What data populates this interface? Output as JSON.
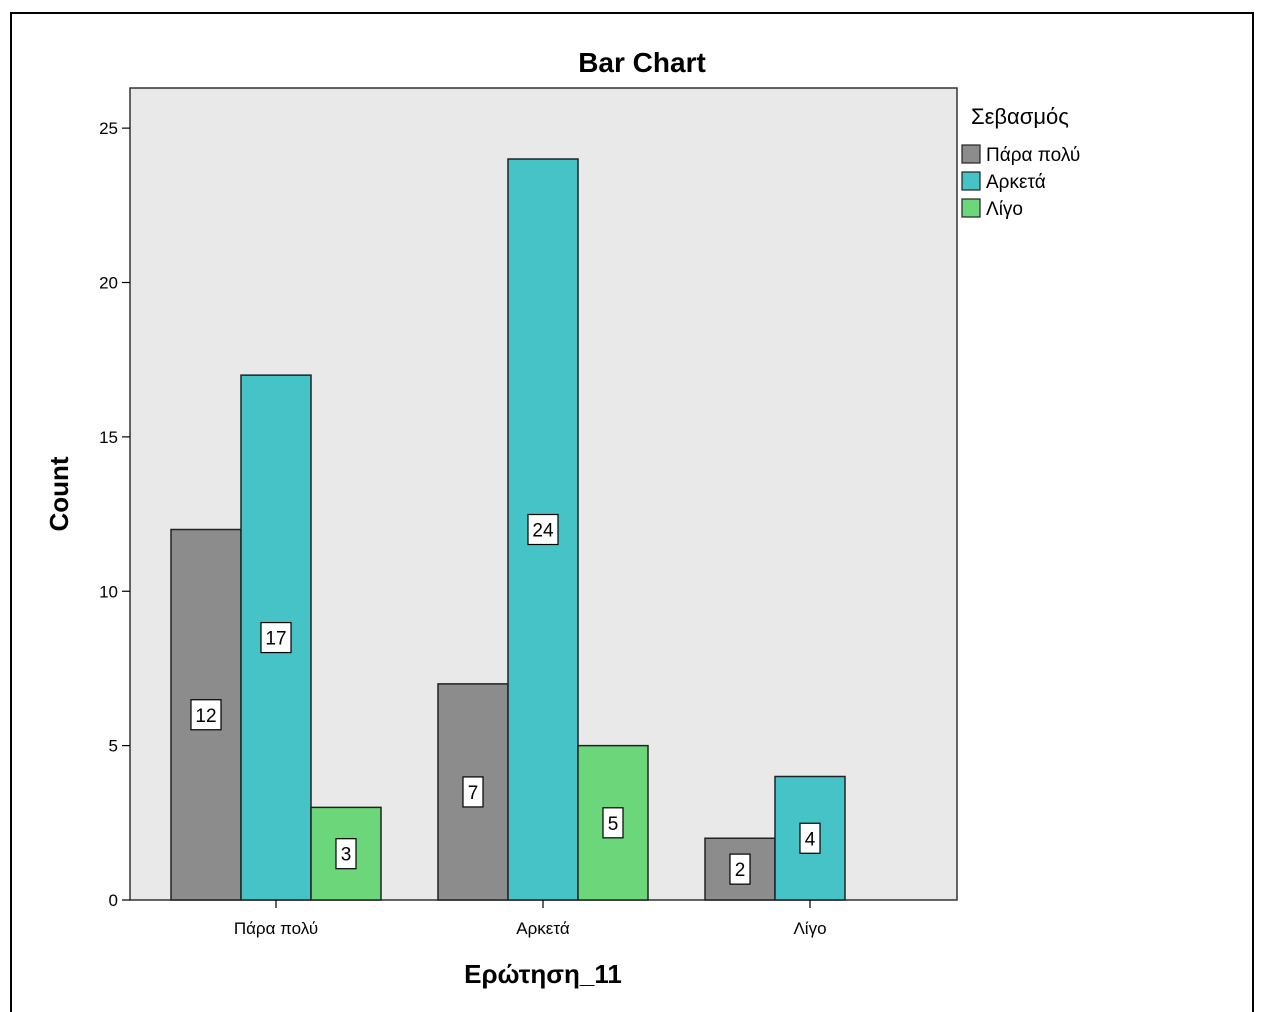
{
  "chart_data": {
    "type": "bar",
    "title": "Bar Chart",
    "xlabel": "Ερώτηση_11",
    "ylabel": "Count",
    "categories": [
      "Πάρα πολύ",
      "Αρκετά",
      "Λίγο"
    ],
    "legend_title": "Σεβασμός",
    "legend_position": "top-right",
    "ylim": [
      0,
      26.3
    ],
    "yticks": [
      0,
      5,
      10,
      15,
      20,
      25
    ],
    "grid": false,
    "plot_background": "#e9e9e9",
    "series": [
      {
        "name": "Πάρα πολύ",
        "color": "#8c8c8c",
        "values": [
          12,
          7,
          2
        ]
      },
      {
        "name": "Αρκετά",
        "color": "#46c3c6",
        "values": [
          17,
          24,
          4
        ]
      },
      {
        "name": "Λίγο",
        "color": "#6bd67a",
        "values": [
          3,
          5,
          null
        ]
      }
    ]
  }
}
